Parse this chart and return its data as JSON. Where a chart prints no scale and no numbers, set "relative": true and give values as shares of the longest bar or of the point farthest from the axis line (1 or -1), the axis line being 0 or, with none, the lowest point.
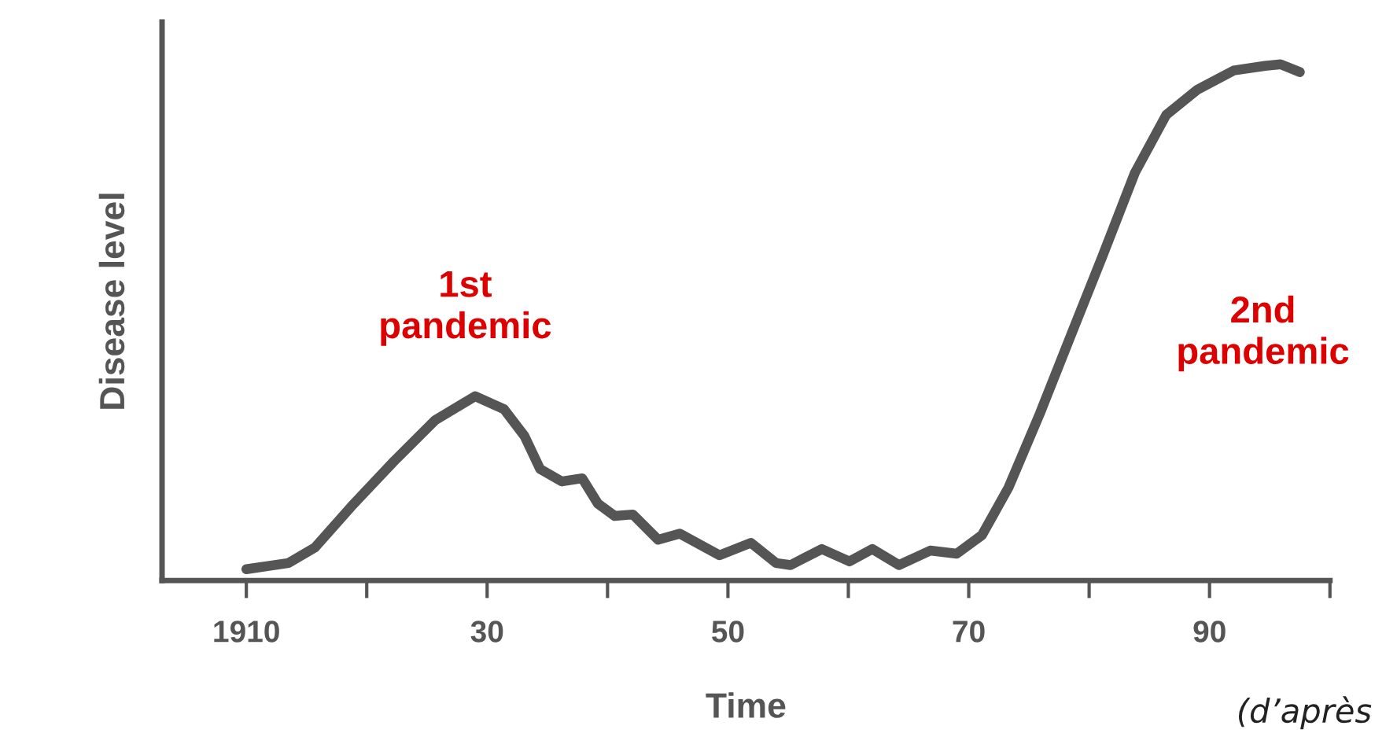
{
  "chart_data": {
    "type": "line",
    "relative": true,
    "xlabel": "Time",
    "ylabel": "Disease level",
    "x": [
      1910,
      1913.5,
      1915.7,
      1918.7,
      1922.3,
      1925.7,
      1929,
      1931.4,
      1933.1,
      1934.4,
      1936.2,
      1937.9,
      1939.2,
      1940.6,
      1942.1,
      1944.2,
      1946,
      1949.3,
      1951.9,
      1954,
      1955.2,
      1957.8,
      1960.1,
      1962,
      1964.2,
      1966.8,
      1969,
      1971.1,
      1973.3,
      1975.9,
      1978.5,
      1981.1,
      1983.8,
      1986.4,
      1989,
      1992,
      1994.6,
      1995.9,
      1997.5
    ],
    "series": [
      {
        "color": "#555555",
        "values": [
          0.022,
          0.034,
          0.064,
          0.143,
          0.232,
          0.311,
          0.357,
          0.332,
          0.28,
          0.216,
          0.192,
          0.198,
          0.149,
          0.125,
          0.128,
          0.079,
          0.091,
          0.049,
          0.073,
          0.034,
          0.03,
          0.061,
          0.037,
          0.061,
          0.03,
          0.058,
          0.052,
          0.088,
          0.18,
          0.323,
          0.476,
          0.628,
          0.79,
          0.902,
          0.951,
          0.988,
          0.997,
          1.0,
          0.985
        ]
      }
    ],
    "xlim": [
      1903,
      2000
    ],
    "xticks": [
      1910,
      {
        "value": 1920,
        "label": null
      },
      {
        "value": 1930,
        "label": "30"
      },
      {
        "value": 1940,
        "label": null
      },
      {
        "value": 1950,
        "label": "50"
      },
      {
        "value": 1960,
        "label": null
      },
      {
        "value": 1970,
        "label": "70"
      },
      {
        "value": 1980,
        "label": null
      },
      {
        "value": 1990,
        "label": "90"
      },
      {
        "value": 2000,
        "label": null
      }
    ],
    "grid": false,
    "marker": "none",
    "line_style": "solid",
    "annotations": [
      "1st\npandemic",
      "2nd\npandemic",
      "(d’après"
    ]
  }
}
